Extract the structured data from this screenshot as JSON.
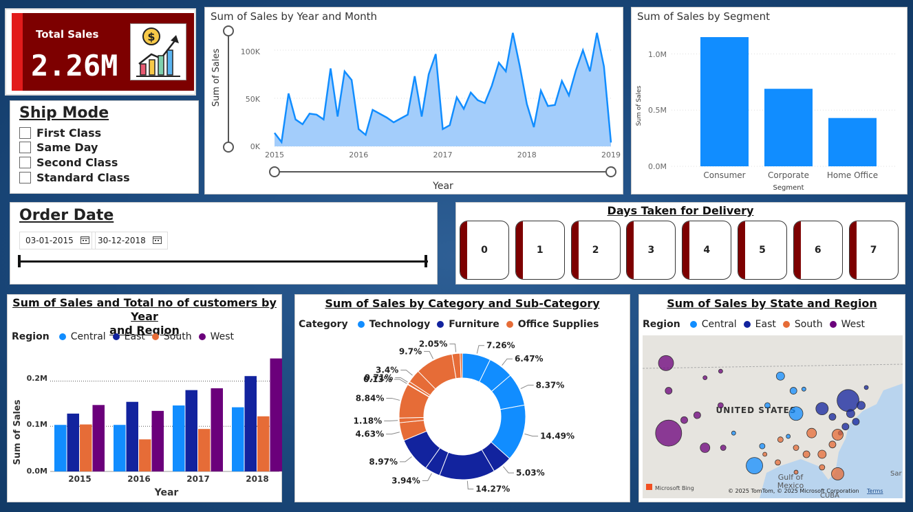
{
  "kpi": {
    "label": "Total Sales",
    "value": "2.26M",
    "icon": "sales-growth-icon"
  },
  "ship_mode": {
    "title": "Ship Mode",
    "options": [
      "First Class",
      "Same Day",
      "Second Class",
      "Standard Class"
    ]
  },
  "order_date": {
    "title": "Order Date",
    "start": "03-01-2015",
    "end": "30-12-2018"
  },
  "days": {
    "title": "Days Taken for Delivery",
    "values": [
      "0",
      "1",
      "2",
      "3",
      "4",
      "5",
      "6",
      "7"
    ]
  },
  "colors": {
    "central": "#118dff",
    "east": "#12239e",
    "south": "#e66c37",
    "west": "#6b007b",
    "area": "#a3cdfb",
    "line": "#118dff",
    "bar": "#118dff"
  },
  "line_chart": {
    "title": "Sum of Sales by Year and Month",
    "xlabel": "Year",
    "ylabel": "Sum of Sales",
    "y_ticks": [
      "100K",
      "50K",
      "0K"
    ],
    "x_ticks": [
      "2015",
      "2016",
      "2017",
      "2018",
      "2019"
    ]
  },
  "segment_chart": {
    "title": "Sum of Sales by Segment",
    "xlabel": "Segment",
    "ylabel": "Sum of Sales",
    "y_ticks": [
      "1.0M",
      "0.5M",
      "0.0M"
    ]
  },
  "region_chart": {
    "title_line1": "Sum of Sales and Total no of customers by Year",
    "title_line2": "and Region",
    "legend_title": "Region",
    "xlabel": "Year",
    "ylabel": "Sum of Sales",
    "y_ticks": [
      "0.2M",
      "0.1M",
      "0.0M"
    ]
  },
  "category_chart": {
    "title": "Sum of Sales by Category and Sub-Category",
    "legend_title": "Category",
    "legend": [
      "Technology",
      "Furniture",
      "Office Supplies"
    ]
  },
  "map": {
    "title": "Sum of Sales by State and Region",
    "legend_title": "Region",
    "legend": [
      "Central",
      "East",
      "South",
      "West"
    ],
    "country_label": "UNITED STATES",
    "gulf_label": "Gulf of",
    "gulf_label2": "Mexico",
    "cuba_label": "CUBA",
    "sar_label": "Sar",
    "bing": "Microsoft Bing",
    "copyright": "© 2025 TomTom, © 2025 Microsoft Corporation",
    "terms": "Terms"
  },
  "chart_data": [
    {
      "type": "area",
      "title": "Sum of Sales by Year and Month",
      "xlabel": "Year",
      "ylabel": "Sum of Sales",
      "x_ticks": [
        "2015",
        "2016",
        "2017",
        "2018",
        "2019"
      ],
      "ylim": [
        0,
        110000
      ],
      "x": [
        "2015-01",
        "2015-02",
        "2015-03",
        "2015-04",
        "2015-05",
        "2015-06",
        "2015-07",
        "2015-08",
        "2015-09",
        "2015-10",
        "2015-11",
        "2015-12",
        "2016-01",
        "2016-02",
        "2016-03",
        "2016-04",
        "2016-05",
        "2016-06",
        "2016-07",
        "2016-08",
        "2016-09",
        "2016-10",
        "2016-11",
        "2016-12",
        "2017-01",
        "2017-02",
        "2017-03",
        "2017-04",
        "2017-05",
        "2017-06",
        "2017-07",
        "2017-08",
        "2017-09",
        "2017-10",
        "2017-11",
        "2017-12",
        "2018-01",
        "2018-02",
        "2018-03",
        "2018-04",
        "2018-05",
        "2018-06",
        "2018-07",
        "2018-08",
        "2018-09",
        "2018-10",
        "2018-11",
        "2018-12",
        "2019-01"
      ],
      "values": [
        14000,
        4500,
        55000,
        28000,
        23000,
        34000,
        33000,
        28000,
        81000,
        31000,
        78000,
        69000,
        18000,
        12000,
        38000,
        34000,
        30000,
        25000,
        29000,
        33000,
        73000,
        31000,
        75000,
        96000,
        18000,
        22000,
        51000,
        39000,
        56000,
        48000,
        45000,
        63000,
        87000,
        78000,
        118000,
        83000,
        44000,
        20000,
        58000,
        42000,
        43000,
        68000,
        53000,
        79000,
        100000,
        78000,
        118000,
        83000,
        4000
      ],
      "y_ticks": [
        "0K",
        "50K",
        "100K"
      ]
    },
    {
      "type": "bar",
      "title": "Sum of Sales by Segment",
      "xlabel": "Segment",
      "ylabel": "Sum of Sales",
      "categories": [
        "Consumer",
        "Corporate",
        "Home Office"
      ],
      "values": [
        1150000,
        690000,
        430000
      ],
      "ylim": [
        0,
        1150000
      ],
      "y_ticks": [
        "0.0M",
        "0.5M",
        "1.0M"
      ]
    },
    {
      "type": "bar",
      "title": "Sum of Sales and Total no of customers by Year and Region",
      "xlabel": "Year",
      "ylabel": "Sum of Sales",
      "categories": [
        "2015",
        "2016",
        "2017",
        "2018"
      ],
      "ylim": [
        0,
        0.26
      ],
      "series": [
        {
          "name": "Central",
          "values": [
            0.103,
            0.103,
            0.146,
            0.142
          ]
        },
        {
          "name": "East",
          "values": [
            0.128,
            0.154,
            0.18,
            0.211
          ]
        },
        {
          "name": "South",
          "values": [
            0.104,
            0.071,
            0.094,
            0.122
          ]
        },
        {
          "name": "West",
          "values": [
            0.147,
            0.134,
            0.184,
            0.25
          ]
        }
      ]
    },
    {
      "type": "pie",
      "title": "Sum of Sales by Category and Sub-Category",
      "categories": [
        "Technology",
        "Technology",
        "Technology",
        "Technology",
        "Furniture",
        "Furniture",
        "Furniture",
        "Furniture",
        "Office Supplies",
        "Office Supplies",
        "Office Supplies",
        "Office Supplies",
        "Office Supplies",
        "Office Supplies",
        "Office Supplies",
        "Office Supplies",
        "Office Supplies"
      ],
      "labels": [
        "7.26%",
        "6.47%",
        "8.37%",
        "14.49%",
        "5.03%",
        "14.27%",
        "3.94%",
        "8.97%",
        "4.63%",
        "1.18%",
        "8.84%",
        "0.13%",
        "0.71%",
        "3.4%",
        "9.7%",
        "2.05%",
        ""
      ],
      "values": [
        7.26,
        6.47,
        8.37,
        14.49,
        5.03,
        14.27,
        3.94,
        8.97,
        4.63,
        1.18,
        8.84,
        0.13,
        0.71,
        3.4,
        9.7,
        2.05,
        0.56
      ]
    }
  ],
  "map_points": [
    {
      "region": "west",
      "lon": 0.09,
      "lat": 0.17,
      "r": 11
    },
    {
      "region": "west",
      "lon": 0.1,
      "lat": 0.34,
      "r": 5
    },
    {
      "region": "west",
      "lon": 0.1,
      "lat": 0.6,
      "r": 19
    },
    {
      "region": "west",
      "lon": 0.16,
      "lat": 0.52,
      "r": 5
    },
    {
      "region": "west",
      "lon": 0.21,
      "lat": 0.49,
      "r": 5
    },
    {
      "region": "west",
      "lon": 0.24,
      "lat": 0.69,
      "r": 7
    },
    {
      "region": "west",
      "lon": 0.3,
      "lat": 0.43,
      "r": 4
    },
    {
      "region": "west",
      "lon": 0.3,
      "lat": 0.22,
      "r": 3
    },
    {
      "region": "west",
      "lon": 0.24,
      "lat": 0.26,
      "r": 3
    },
    {
      "region": "west",
      "lon": 0.31,
      "lat": 0.69,
      "r": 4
    },
    {
      "region": "central",
      "lon": 0.53,
      "lat": 0.25,
      "r": 6
    },
    {
      "region": "central",
      "lon": 0.48,
      "lat": 0.43,
      "r": 4
    },
    {
      "region": "central",
      "lon": 0.58,
      "lat": 0.34,
      "r": 5
    },
    {
      "region": "central",
      "lon": 0.59,
      "lat": 0.48,
      "r": 10
    },
    {
      "region": "central",
      "lon": 0.43,
      "lat": 0.8,
      "r": 12
    },
    {
      "region": "central",
      "lon": 0.46,
      "lat": 0.68,
      "r": 4
    },
    {
      "region": "central",
      "lon": 0.62,
      "lat": 0.33,
      "r": 3
    },
    {
      "region": "central",
      "lon": 0.56,
      "lat": 0.62,
      "r": 3
    },
    {
      "region": "central",
      "lon": 0.35,
      "lat": 0.6,
      "r": 3
    },
    {
      "region": "east",
      "lon": 0.69,
      "lat": 0.45,
      "r": 9
    },
    {
      "region": "east",
      "lon": 0.73,
      "lat": 0.5,
      "r": 5
    },
    {
      "region": "east",
      "lon": 0.79,
      "lat": 0.4,
      "r": 16
    },
    {
      "region": "east",
      "lon": 0.8,
      "lat": 0.48,
      "r": 6
    },
    {
      "region": "east",
      "lon": 0.84,
      "lat": 0.43,
      "r": 6
    },
    {
      "region": "east",
      "lon": 0.82,
      "lat": 0.53,
      "r": 5
    },
    {
      "region": "east",
      "lon": 0.78,
      "lat": 0.56,
      "r": 5
    },
    {
      "region": "east",
      "lon": 0.76,
      "lat": 0.6,
      "r": 3
    },
    {
      "region": "east",
      "lon": 0.86,
      "lat": 0.32,
      "r": 3
    },
    {
      "region": "south",
      "lon": 0.65,
      "lat": 0.6,
      "r": 7
    },
    {
      "region": "south",
      "lon": 0.63,
      "lat": 0.73,
      "r": 5
    },
    {
      "region": "south",
      "lon": 0.59,
      "lat": 0.69,
      "r": 4
    },
    {
      "region": "south",
      "lon": 0.69,
      "lat": 0.73,
      "r": 6
    },
    {
      "region": "south",
      "lon": 0.73,
      "lat": 0.67,
      "r": 5
    },
    {
      "region": "south",
      "lon": 0.75,
      "lat": 0.61,
      "r": 8
    },
    {
      "region": "south",
      "lon": 0.69,
      "lat": 0.81,
      "r": 4
    },
    {
      "region": "south",
      "lon": 0.52,
      "lat": 0.78,
      "r": 4
    },
    {
      "region": "south",
      "lon": 0.47,
      "lat": 0.73,
      "r": 3
    },
    {
      "region": "south",
      "lon": 0.75,
      "lat": 0.85,
      "r": 9
    },
    {
      "region": "south",
      "lon": 0.53,
      "lat": 0.64,
      "r": 4
    },
    {
      "region": "south",
      "lon": 0.59,
      "lat": 0.84,
      "r": 3
    }
  ]
}
